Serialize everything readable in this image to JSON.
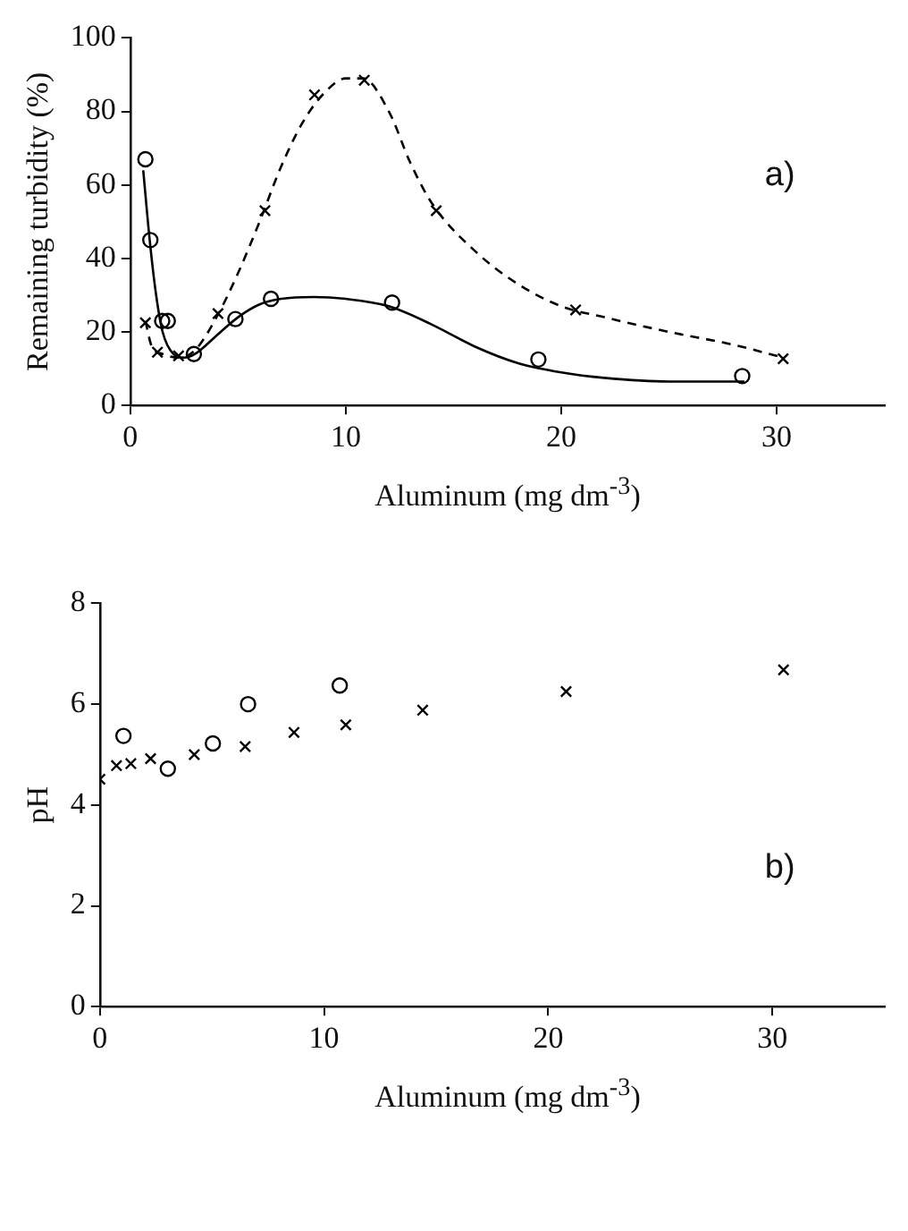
{
  "chart_data": [
    {
      "type": "scatter",
      "xlabel": "Aluminum (mg dm$^{-3}$)",
      "ylabel": "Remaining turbidity (%)",
      "xlim": [
        0,
        35
      ],
      "xticks": [
        0,
        10,
        20,
        30
      ],
      "ylim": [
        0,
        100
      ],
      "yticks": [
        0,
        20,
        40,
        60,
        80,
        100
      ],
      "grid": false,
      "legend": false,
      "annotations": [
        "a)"
      ],
      "series": [
        {
          "type": "scatter",
          "marker": "circle",
          "color": "#000000",
          "x": [
            0.7,
            0.93,
            1.48,
            1.74,
            2.95,
            4.88,
            6.53,
            12.15,
            18.94,
            28.4
          ],
          "values": [
            67,
            45,
            23,
            23,
            14,
            23.5,
            29,
            28,
            12.5,
            8
          ]
        },
        {
          "type": "scatter",
          "marker": "cross",
          "color": "#000000",
          "x": [
            0.7,
            1.26,
            2.24,
            4.07,
            6.25,
            8.55,
            10.86,
            14.2,
            20.67,
            30.3
          ],
          "values": [
            22.5,
            14.5,
            13.5,
            25,
            53,
            84.5,
            88.5,
            53,
            26,
            12.7
          ]
        },
        {
          "type": "line",
          "marker": "none",
          "line_style": "solid",
          "color": "#000000",
          "x": [
            0.6,
            0.9,
            1.2,
            1.5,
            2.0,
            2.5,
            3,
            4,
            5,
            6,
            7,
            8.5,
            10,
            12,
            14,
            16,
            18,
            20,
            22,
            25,
            28.5
          ],
          "values": [
            64,
            45,
            30,
            20,
            14,
            13,
            14,
            19,
            24,
            27.5,
            29,
            29.5,
            29,
            27,
            22,
            16,
            11.5,
            9,
            7.5,
            6.5,
            6.5
          ]
        },
        {
          "type": "line",
          "marker": "none",
          "line_style": "dashed",
          "color": "#000000",
          "x": [
            0.7,
            1.0,
            1.5,
            2.2,
            3,
            4,
            5,
            6,
            7,
            8,
            9,
            10,
            10.8,
            12,
            13,
            14,
            16,
            18,
            20,
            22,
            25,
            28,
            30.3
          ],
          "values": [
            23,
            16,
            14,
            13,
            15,
            24,
            36,
            50,
            65,
            77,
            85,
            89,
            89,
            80,
            66,
            55,
            42,
            33,
            27,
            24,
            20,
            16.5,
            13
          ]
        }
      ]
    },
    {
      "type": "scatter",
      "xlabel": "Aluminum (mg dm$^{-3}$)",
      "ylabel": "pH",
      "xlim": [
        0,
        35
      ],
      "xticks": [
        0,
        10,
        20,
        30
      ],
      "ylim": [
        0,
        8
      ],
      "yticks": [
        0,
        2,
        4,
        6,
        8
      ],
      "grid": false,
      "legend": false,
      "annotations": [
        "b)"
      ],
      "series": [
        {
          "type": "scatter",
          "marker": "circle",
          "color": "#000000",
          "x": [
            1.05,
            3.03,
            5.04,
            6.61,
            10.7
          ],
          "values": [
            5.37,
            4.72,
            5.22,
            6.0,
            6.37
          ]
        },
        {
          "type": "scatter",
          "marker": "cross",
          "color": "#000000",
          "x": [
            0,
            0.74,
            1.38,
            2.26,
            4.21,
            6.48,
            8.66,
            10.97,
            14.4,
            20.8,
            30.5
          ],
          "values": [
            4.51,
            4.78,
            4.82,
            4.92,
            5.0,
            5.16,
            5.44,
            5.59,
            5.88,
            6.25,
            6.68
          ]
        }
      ]
    }
  ]
}
